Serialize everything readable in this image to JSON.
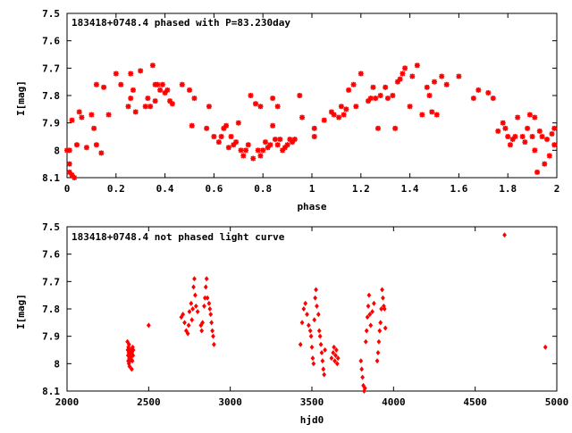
{
  "chart_data": [
    {
      "type": "scatter",
      "title": "183418+0748.4 phased with P=83.230day",
      "xlabel": "phase",
      "ylabel": "I[mag]",
      "xlim": [
        0,
        2
      ],
      "ylim": [
        8.1,
        7.5
      ],
      "y_inverted": true,
      "marker": "star",
      "color": "#ff0000",
      "xticks": [
        "0",
        "0.2",
        "0.4",
        "0.6",
        "0.8",
        "1",
        "1.2",
        "1.4",
        "1.6",
        "1.8",
        "2"
      ],
      "yticks": [
        "7.5",
        "7.6",
        "7.7",
        "7.8",
        "7.9",
        "8",
        "8.1"
      ],
      "grid": false,
      "points": [
        [
          0.0,
          8.0
        ],
        [
          0.01,
          8.05
        ],
        [
          0.01,
          8.08
        ],
        [
          0.01,
          8.0
        ],
        [
          0.02,
          7.89
        ],
        [
          0.02,
          8.09
        ],
        [
          0.03,
          8.1
        ],
        [
          0.04,
          7.98
        ],
        [
          0.05,
          7.86
        ],
        [
          0.06,
          7.88
        ],
        [
          0.08,
          7.99
        ],
        [
          0.1,
          7.87
        ],
        [
          0.11,
          7.92
        ],
        [
          0.12,
          7.98
        ],
        [
          0.12,
          7.76
        ],
        [
          0.14,
          8.01
        ],
        [
          0.15,
          7.77
        ],
        [
          0.17,
          7.87
        ],
        [
          0.2,
          7.72
        ],
        [
          0.22,
          7.76
        ],
        [
          0.25,
          7.84
        ],
        [
          0.26,
          7.81
        ],
        [
          0.26,
          7.72
        ],
        [
          0.27,
          7.78
        ],
        [
          0.28,
          7.86
        ],
        [
          0.3,
          7.71
        ],
        [
          0.32,
          7.84
        ],
        [
          0.33,
          7.81
        ],
        [
          0.34,
          7.84
        ],
        [
          0.35,
          7.69
        ],
        [
          0.36,
          7.82
        ],
        [
          0.36,
          7.76
        ],
        [
          0.37,
          7.76
        ],
        [
          0.38,
          7.78
        ],
        [
          0.39,
          7.76
        ],
        [
          0.4,
          7.79
        ],
        [
          0.41,
          7.78
        ],
        [
          0.42,
          7.82
        ],
        [
          0.43,
          7.83
        ],
        [
          0.47,
          7.76
        ],
        [
          0.5,
          7.78
        ],
        [
          0.51,
          7.91
        ],
        [
          0.52,
          7.81
        ],
        [
          0.57,
          7.92
        ],
        [
          0.58,
          7.84
        ],
        [
          0.6,
          7.95
        ],
        [
          0.62,
          7.97
        ],
        [
          0.63,
          7.95
        ],
        [
          0.64,
          7.92
        ],
        [
          0.65,
          7.91
        ],
        [
          0.66,
          7.99
        ],
        [
          0.67,
          7.95
        ],
        [
          0.68,
          7.98
        ],
        [
          0.69,
          7.97
        ],
        [
          0.7,
          7.9
        ],
        [
          0.71,
          8.0
        ],
        [
          0.72,
          8.02
        ],
        [
          0.73,
          8.0
        ],
        [
          0.74,
          7.98
        ],
        [
          0.75,
          7.8
        ],
        [
          0.76,
          8.03
        ],
        [
          0.77,
          7.83
        ],
        [
          0.78,
          8.0
        ],
        [
          0.79,
          7.84
        ],
        [
          0.79,
          8.02
        ],
        [
          0.8,
          8.0
        ],
        [
          0.81,
          7.97
        ],
        [
          0.82,
          7.99
        ],
        [
          0.83,
          7.98
        ],
        [
          0.84,
          7.91
        ],
        [
          0.84,
          7.81
        ],
        [
          0.85,
          7.96
        ],
        [
          0.86,
          7.98
        ],
        [
          0.86,
          7.84
        ],
        [
          0.87,
          7.96
        ],
        [
          0.88,
          8.0
        ],
        [
          0.89,
          7.99
        ],
        [
          0.9,
          7.98
        ],
        [
          0.91,
          7.96
        ],
        [
          0.92,
          7.97
        ],
        [
          0.93,
          7.96
        ],
        [
          0.95,
          7.8
        ],
        [
          0.96,
          7.88
        ],
        [
          1.01,
          7.92
        ],
        [
          1.01,
          7.95
        ],
        [
          1.05,
          7.89
        ],
        [
          1.08,
          7.86
        ],
        [
          1.09,
          7.87
        ],
        [
          1.11,
          7.88
        ],
        [
          1.12,
          7.84
        ],
        [
          1.13,
          7.87
        ],
        [
          1.14,
          7.85
        ],
        [
          1.15,
          7.78
        ],
        [
          1.17,
          7.76
        ],
        [
          1.18,
          7.84
        ],
        [
          1.2,
          7.72
        ],
        [
          1.23,
          7.82
        ],
        [
          1.24,
          7.81
        ],
        [
          1.25,
          7.77
        ],
        [
          1.26,
          7.81
        ],
        [
          1.27,
          7.92
        ],
        [
          1.28,
          7.8
        ],
        [
          1.3,
          7.77
        ],
        [
          1.31,
          7.81
        ],
        [
          1.33,
          7.8
        ],
        [
          1.34,
          7.92
        ],
        [
          1.35,
          7.75
        ],
        [
          1.36,
          7.74
        ],
        [
          1.37,
          7.72
        ],
        [
          1.38,
          7.7
        ],
        [
          1.4,
          7.84
        ],
        [
          1.41,
          7.73
        ],
        [
          1.43,
          7.69
        ],
        [
          1.45,
          7.87
        ],
        [
          1.47,
          7.77
        ],
        [
          1.48,
          7.8
        ],
        [
          1.49,
          7.86
        ],
        [
          1.5,
          7.75
        ],
        [
          1.51,
          7.87
        ],
        [
          1.53,
          7.73
        ],
        [
          1.55,
          7.76
        ],
        [
          1.6,
          7.73
        ],
        [
          1.66,
          7.81
        ],
        [
          1.68,
          7.78
        ],
        [
          1.72,
          7.79
        ],
        [
          1.74,
          7.81
        ],
        [
          1.76,
          7.93
        ],
        [
          1.78,
          7.9
        ],
        [
          1.79,
          7.92
        ],
        [
          1.8,
          7.95
        ],
        [
          1.81,
          7.98
        ],
        [
          1.82,
          7.96
        ],
        [
          1.83,
          7.95
        ],
        [
          1.84,
          7.88
        ],
        [
          1.86,
          7.95
        ],
        [
          1.87,
          7.97
        ],
        [
          1.88,
          7.92
        ],
        [
          1.89,
          7.87
        ],
        [
          1.9,
          7.95
        ],
        [
          1.91,
          8.0
        ],
        [
          1.91,
          7.88
        ],
        [
          1.92,
          8.08
        ],
        [
          1.93,
          7.93
        ],
        [
          1.94,
          7.95
        ],
        [
          1.95,
          8.05
        ],
        [
          1.96,
          7.96
        ],
        [
          1.97,
          8.02
        ],
        [
          1.98,
          7.94
        ],
        [
          1.99,
          7.98
        ],
        [
          1.99,
          7.92
        ]
      ]
    },
    {
      "type": "scatter",
      "title": "183418+0748.4 not phased light curve",
      "xlabel": "hjd0",
      "ylabel": "I[mag]",
      "xlim": [
        2000,
        5000
      ],
      "ylim": [
        8.1,
        7.5
      ],
      "y_inverted": true,
      "marker": "diamond",
      "color": "#ff0000",
      "xticks": [
        "2000",
        "2500",
        "3000",
        "3500",
        "4000",
        "4500",
        "5000"
      ],
      "yticks": [
        "7.5",
        "7.6",
        "7.7",
        "7.8",
        "7.9",
        "8",
        "8.1"
      ],
      "grid": false,
      "points": [
        [
          2370,
          7.92
        ],
        [
          2372,
          7.95
        ],
        [
          2374,
          7.97
        ],
        [
          2375,
          7.99
        ],
        [
          2376,
          7.94
        ],
        [
          2378,
          7.96
        ],
        [
          2379,
          8.0
        ],
        [
          2380,
          7.93
        ],
        [
          2381,
          7.98
        ],
        [
          2382,
          7.96
        ],
        [
          2383,
          8.01
        ],
        [
          2385,
          7.95
        ],
        [
          2386,
          7.97
        ],
        [
          2387,
          7.99
        ],
        [
          2388,
          7.96
        ],
        [
          2390,
          7.98
        ],
        [
          2392,
          7.95
        ],
        [
          2394,
          7.97
        ],
        [
          2396,
          8.02
        ],
        [
          2398,
          7.96
        ],
        [
          2400,
          7.99
        ],
        [
          2402,
          7.94
        ],
        [
          2404,
          7.97
        ],
        [
          2406,
          7.95
        ],
        [
          2500,
          7.86
        ],
        [
          2700,
          7.83
        ],
        [
          2710,
          7.82
        ],
        [
          2720,
          7.85
        ],
        [
          2730,
          7.88
        ],
        [
          2740,
          7.89
        ],
        [
          2745,
          7.86
        ],
        [
          2750,
          7.81
        ],
        [
          2760,
          7.78
        ],
        [
          2765,
          7.84
        ],
        [
          2770,
          7.8
        ],
        [
          2775,
          7.72
        ],
        [
          2780,
          7.69
        ],
        [
          2785,
          7.75
        ],
        [
          2790,
          7.79
        ],
        [
          2800,
          7.81
        ],
        [
          2820,
          7.86
        ],
        [
          2825,
          7.88
        ],
        [
          2830,
          7.85
        ],
        [
          2840,
          7.79
        ],
        [
          2845,
          7.76
        ],
        [
          2850,
          7.72
        ],
        [
          2855,
          7.69
        ],
        [
          2860,
          7.76
        ],
        [
          2870,
          7.78
        ],
        [
          2875,
          7.8
        ],
        [
          2880,
          7.82
        ],
        [
          2885,
          7.85
        ],
        [
          2890,
          7.88
        ],
        [
          2895,
          7.9
        ],
        [
          2900,
          7.93
        ],
        [
          3430,
          7.93
        ],
        [
          3440,
          7.85
        ],
        [
          3450,
          7.8
        ],
        [
          3460,
          7.78
        ],
        [
          3470,
          7.82
        ],
        [
          3480,
          7.86
        ],
        [
          3490,
          7.88
        ],
        [
          3495,
          7.9
        ],
        [
          3500,
          7.94
        ],
        [
          3505,
          7.98
        ],
        [
          3510,
          8.0
        ],
        [
          3515,
          7.84
        ],
        [
          3520,
          7.76
        ],
        [
          3525,
          7.73
        ],
        [
          3530,
          7.79
        ],
        [
          3540,
          7.82
        ],
        [
          3545,
          7.88
        ],
        [
          3550,
          7.9
        ],
        [
          3555,
          7.93
        ],
        [
          3560,
          7.96
        ],
        [
          3565,
          7.99
        ],
        [
          3570,
          8.02
        ],
        [
          3575,
          8.04
        ],
        [
          3580,
          7.95
        ],
        [
          3620,
          7.98
        ],
        [
          3630,
          7.96
        ],
        [
          3635,
          7.94
        ],
        [
          3640,
          7.99
        ],
        [
          3645,
          7.97
        ],
        [
          3650,
          7.95
        ],
        [
          3655,
          8.0
        ],
        [
          3660,
          7.98
        ],
        [
          3800,
          7.99
        ],
        [
          3805,
          8.02
        ],
        [
          3810,
          8.05
        ],
        [
          3815,
          8.08
        ],
        [
          3820,
          8.1
        ],
        [
          3825,
          8.09
        ],
        [
          3830,
          7.92
        ],
        [
          3835,
          7.88
        ],
        [
          3840,
          7.83
        ],
        [
          3845,
          7.79
        ],
        [
          3850,
          7.75
        ],
        [
          3855,
          7.82
        ],
        [
          3860,
          7.86
        ],
        [
          3870,
          7.81
        ],
        [
          3880,
          7.78
        ],
        [
          3900,
          7.99
        ],
        [
          3905,
          7.96
        ],
        [
          3910,
          7.92
        ],
        [
          3915,
          7.88
        ],
        [
          3920,
          7.85
        ],
        [
          3925,
          7.8
        ],
        [
          3930,
          7.73
        ],
        [
          3935,
          7.76
        ],
        [
          3940,
          7.79
        ],
        [
          3945,
          7.8
        ],
        [
          3950,
          7.87
        ],
        [
          4680,
          7.53
        ],
        [
          4930,
          7.94
        ]
      ]
    }
  ]
}
